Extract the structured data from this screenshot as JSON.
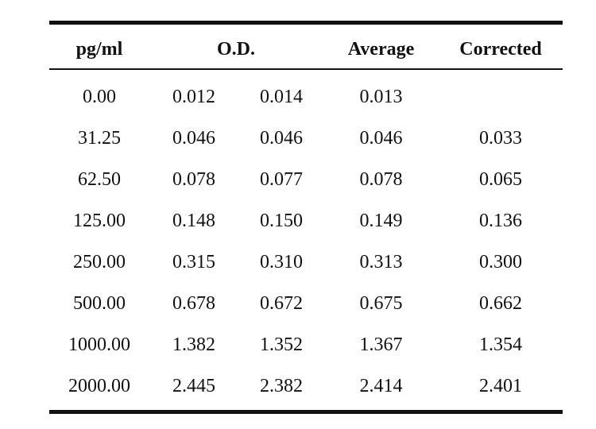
{
  "table": {
    "headers": {
      "concentration": "pg/ml",
      "od": "O.D.",
      "average": "Average",
      "corrected": "Corrected"
    },
    "rows": [
      {
        "conc": "0.00",
        "od1": "0.012",
        "od2": "0.014",
        "avg": "0.013",
        "corr": ""
      },
      {
        "conc": "31.25",
        "od1": "0.046",
        "od2": "0.046",
        "avg": "0.046",
        "corr": "0.033"
      },
      {
        "conc": "62.50",
        "od1": "0.078",
        "od2": "0.077",
        "avg": "0.078",
        "corr": "0.065"
      },
      {
        "conc": "125.00",
        "od1": "0.148",
        "od2": "0.150",
        "avg": "0.149",
        "corr": "0.136"
      },
      {
        "conc": "250.00",
        "od1": "0.315",
        "od2": "0.310",
        "avg": "0.313",
        "corr": "0.300"
      },
      {
        "conc": "500.00",
        "od1": "0.678",
        "od2": "0.672",
        "avg": "0.675",
        "corr": "0.662"
      },
      {
        "conc": "1000.00",
        "od1": "1.382",
        "od2": "1.352",
        "avg": "1.367",
        "corr": "1.354"
      },
      {
        "conc": "2000.00",
        "od1": "2.445",
        "od2": "2.382",
        "avg": "2.414",
        "corr": "2.401"
      }
    ]
  }
}
